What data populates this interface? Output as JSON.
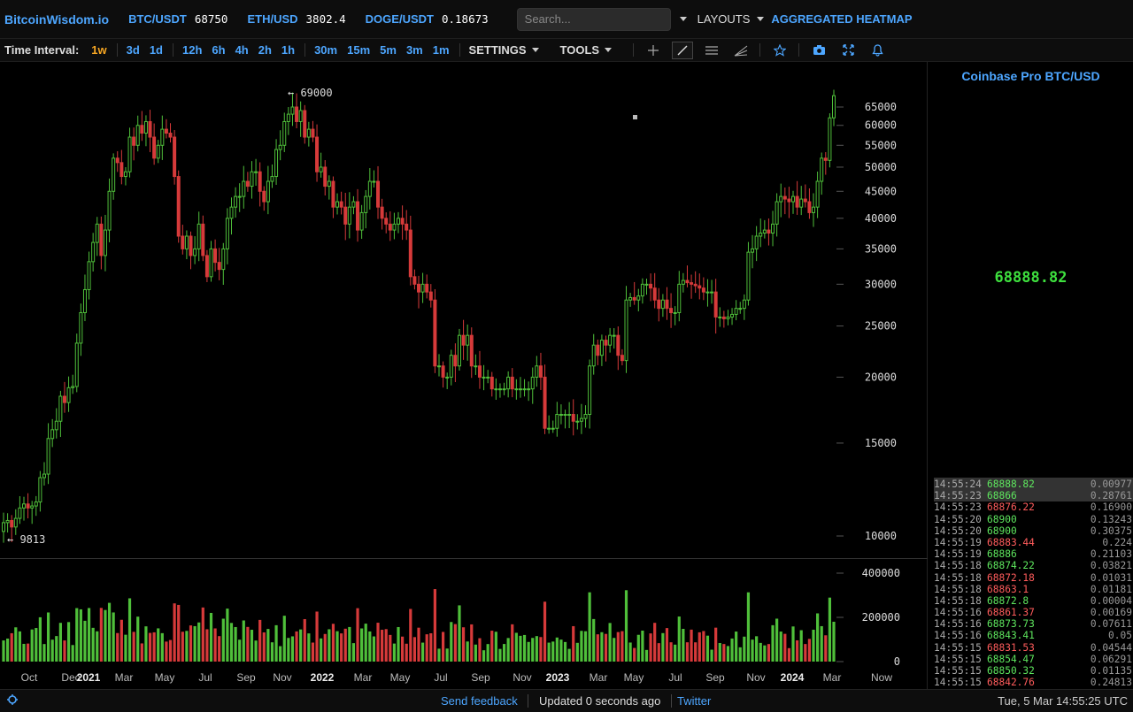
{
  "header": {
    "brand": "BitcoinWisdom.io",
    "tickers": [
      {
        "symbol": "BTC/USDT",
        "price": "68750"
      },
      {
        "symbol": "ETH/USD",
        "price": "3802.4"
      },
      {
        "symbol": "DOGE/USDT",
        "price": "0.18673"
      }
    ],
    "search_placeholder": "Search...",
    "layouts_label": "LAYOUTS",
    "heatmap_label": "AGGREGATED HEATMAP"
  },
  "toolbar": {
    "time_interval_label": "Time Interval:",
    "intervals": [
      "1w",
      "3d",
      "1d",
      "12h",
      "6h",
      "4h",
      "2h",
      "1h",
      "30m",
      "15m",
      "5m",
      "3m",
      "1m"
    ],
    "active_interval": "1w",
    "settings_label": "SETTINGS",
    "tools_label": "TOOLS",
    "tool_icons": [
      "crosshair-icon",
      "line-tool-icon",
      "horizontal-lines-icon",
      "fan-tool-icon",
      "star-icon",
      "camera-icon",
      "fullscreen-icon",
      "bell-icon"
    ]
  },
  "market": {
    "title": "Coinbase Pro BTC/USD",
    "last_price": "68888.82"
  },
  "trades": [
    {
      "time": "14:55:24",
      "price": "68888.82",
      "side": "buy",
      "amount": "0.00977"
    },
    {
      "time": "14:55:23",
      "price": "68866",
      "side": "buy",
      "amount": "0.28761"
    },
    {
      "time": "14:55:23",
      "price": "68876.22",
      "side": "sell",
      "amount": "0.16900"
    },
    {
      "time": "14:55:20",
      "price": "68900",
      "side": "buy",
      "amount": "0.13243"
    },
    {
      "time": "14:55:20",
      "price": "68900",
      "side": "buy",
      "amount": "0.30375"
    },
    {
      "time": "14:55:19",
      "price": "68883.44",
      "side": "sell",
      "amount": "0.224"
    },
    {
      "time": "14:55:19",
      "price": "68886",
      "side": "buy",
      "amount": "0.21103"
    },
    {
      "time": "14:55:18",
      "price": "68874.22",
      "side": "buy",
      "amount": "0.03821"
    },
    {
      "time": "14:55:18",
      "price": "68872.18",
      "side": "sell",
      "amount": "0.01031"
    },
    {
      "time": "14:55:18",
      "price": "68863.1",
      "side": "sell",
      "amount": "0.01181"
    },
    {
      "time": "14:55:18",
      "price": "68872.8",
      "side": "buy",
      "amount": "0.00004"
    },
    {
      "time": "14:55:16",
      "price": "68861.37",
      "side": "sell",
      "amount": "0.00169"
    },
    {
      "time": "14:55:16",
      "price": "68873.73",
      "side": "buy",
      "amount": "0.07611"
    },
    {
      "time": "14:55:16",
      "price": "68843.41",
      "side": "buy",
      "amount": "0.05"
    },
    {
      "time": "14:55:15",
      "price": "68831.53",
      "side": "sell",
      "amount": "0.04544"
    },
    {
      "time": "14:55:15",
      "price": "68854.47",
      "side": "buy",
      "amount": "0.06291"
    },
    {
      "time": "14:55:15",
      "price": "68850.32",
      "side": "buy",
      "amount": "0.01135"
    },
    {
      "time": "14:55:15",
      "price": "68842.76",
      "side": "sell",
      "amount": "0.24813"
    }
  ],
  "status": {
    "feedback_label": "Send feedback",
    "updated_label": "Updated 0 seconds ago",
    "twitter_label": "Twitter",
    "clock": "Tue, 5 Mar 14:55:25 UTC"
  },
  "chart_data": {
    "type": "candlestick",
    "price_scale": "log",
    "price_ticks": [
      65000,
      60000,
      55000,
      50000,
      45000,
      40000,
      35000,
      30000,
      25000,
      20000,
      15000,
      10000
    ],
    "volume_ticks": [
      400000,
      200000,
      0
    ],
    "x_labels": [
      "Oct",
      "Dec",
      "2021",
      "Mar",
      "May",
      "Jul",
      "Sep",
      "Nov",
      "2022",
      "Mar",
      "May",
      "Jul",
      "Sep",
      "Nov",
      "2023",
      "Mar",
      "May",
      "Jul",
      "Sep",
      "Nov",
      "2024",
      "Mar",
      "Now"
    ],
    "bold_x_labels": [
      "2021",
      "2022",
      "2023",
      "2024"
    ],
    "high_annotation": "← 69000",
    "low_annotation": "← 9813",
    "up_color": "#4fbf3a",
    "down_color": "#d63a3a",
    "weekly_closes": [
      10600,
      10700,
      10400,
      10800,
      11300,
      11500,
      11300,
      11400,
      11600,
      12900,
      13100,
      15300,
      15900,
      16500,
      18400,
      17900,
      19100,
      19200,
      23200,
      26500,
      29300,
      33100,
      36000,
      39000,
      34000,
      38000,
      45000,
      52000,
      51000,
      48000,
      49000,
      57000,
      55000,
      60000,
      58000,
      61000,
      57000,
      52000,
      55000,
      59000,
      58000,
      57000,
      48000,
      37000,
      35000,
      37000,
      34000,
      35000,
      39000,
      34000,
      31000,
      35000,
      33000,
      32000,
      35000,
      40000,
      42000,
      44000,
      44000,
      47000,
      46000,
      49000,
      49000,
      45000,
      43000,
      47000,
      48000,
      54000,
      55000,
      61000,
      63000,
      65000,
      61000,
      64000,
      57000,
      59000,
      57000,
      49000,
      50000,
      46000,
      47000,
      42000,
      43000,
      42000,
      39000,
      42000,
      43000,
      38000,
      41000,
      44000,
      47000,
      47000,
      42000,
      40000,
      39000,
      38000,
      39000,
      40000,
      39000,
      38000,
      31000,
      30000,
      29000,
      30000,
      29000,
      28000,
      21000,
      21000,
      20000,
      20000,
      22000,
      21000,
      24000,
      23000,
      24000,
      21000,
      21000,
      20000,
      20000,
      20000,
      19000,
      19000,
      19000,
      19000,
      20000,
      19000,
      19000,
      19000,
      19000,
      19000,
      20000,
      21000,
      20000,
      16000,
      16000,
      16000,
      17000,
      17000,
      17000,
      17000,
      16500,
      16500,
      16700,
      17000,
      21000,
      23000,
      22000,
      23500,
      23000,
      24000,
      24000,
      22000,
      21500,
      28000,
      28300,
      28000,
      28500,
      30000,
      30000,
      29500,
      28000,
      27000,
      28000,
      27000,
      26500,
      26500,
      30000,
      30500,
      30200,
      30000,
      29800,
      29500,
      29000,
      29000,
      29000,
      26000,
      26000,
      25800,
      26000,
      26300,
      27000,
      27000,
      28000,
      34500,
      35000,
      37000,
      37500,
      38000,
      37500,
      39000,
      43000,
      44000,
      43500,
      43000,
      44000,
      42000,
      43500,
      43000,
      41000,
      42000,
      47000,
      52000,
      51500,
      62000,
      68300
    ]
  }
}
